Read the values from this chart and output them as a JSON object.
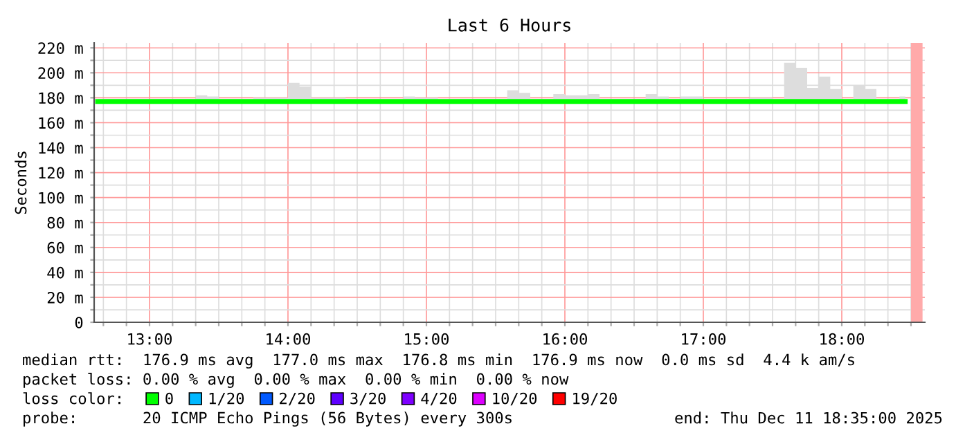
{
  "chart_data": {
    "type": "line",
    "title": "Last 6 Hours",
    "ylabel": "Seconds",
    "legend_title": "loss color:",
    "legend": "bottom",
    "grid": true,
    "xlim": [
      12.6,
      18.6
    ],
    "ylim": [
      0,
      224
    ],
    "xticks": [
      {
        "value": 12.6667,
        "label": null
      },
      {
        "value": 12.8333,
        "label": null
      },
      {
        "value": 13,
        "label": "13:00"
      },
      {
        "value": 13.1667,
        "label": null
      },
      {
        "value": 13.3333,
        "label": null
      },
      {
        "value": 13.5,
        "label": null
      },
      {
        "value": 13.6667,
        "label": null
      },
      {
        "value": 13.8333,
        "label": null
      },
      {
        "value": 14,
        "label": "14:00"
      },
      {
        "value": 14.1667,
        "label": null
      },
      {
        "value": 14.3333,
        "label": null
      },
      {
        "value": 14.5,
        "label": null
      },
      {
        "value": 14.6667,
        "label": null
      },
      {
        "value": 14.8333,
        "label": null
      },
      {
        "value": 15,
        "label": "15:00"
      },
      {
        "value": 15.1667,
        "label": null
      },
      {
        "value": 15.3333,
        "label": null
      },
      {
        "value": 15.5,
        "label": null
      },
      {
        "value": 15.6667,
        "label": null
      },
      {
        "value": 15.8333,
        "label": null
      },
      {
        "value": 16,
        "label": "16:00"
      },
      {
        "value": 16.1667,
        "label": null
      },
      {
        "value": 16.3333,
        "label": null
      },
      {
        "value": 16.5,
        "label": null
      },
      {
        "value": 16.6667,
        "label": null
      },
      {
        "value": 16.8333,
        "label": null
      },
      {
        "value": 17,
        "label": "17:00"
      },
      {
        "value": 17.1667,
        "label": null
      },
      {
        "value": 17.3333,
        "label": null
      },
      {
        "value": 17.5,
        "label": null
      },
      {
        "value": 17.6667,
        "label": null
      },
      {
        "value": 17.8333,
        "label": null
      },
      {
        "value": 18,
        "label": "18:00"
      },
      {
        "value": 18.1667,
        "label": null
      },
      {
        "value": 18.3333,
        "label": null
      },
      {
        "value": 18.5,
        "label": null
      }
    ],
    "yticks": [
      0,
      {
        "value": 10,
        "label": null
      },
      {
        "value": 20,
        "label": "20 m"
      },
      {
        "value": 30,
        "label": null
      },
      {
        "value": 40,
        "label": "40 m"
      },
      {
        "value": 50,
        "label": null
      },
      {
        "value": 60,
        "label": "60 m"
      },
      {
        "value": 70,
        "label": null
      },
      {
        "value": 80,
        "label": "80 m"
      },
      {
        "value": 90,
        "label": null
      },
      {
        "value": 100,
        "label": "100 m"
      },
      {
        "value": 110,
        "label": null
      },
      {
        "value": 120,
        "label": "120 m"
      },
      {
        "value": 130,
        "label": null
      },
      {
        "value": 140,
        "label": "140 m"
      },
      {
        "value": 150,
        "label": null
      },
      {
        "value": 160,
        "label": "160 m"
      },
      {
        "value": 170,
        "label": null
      },
      {
        "value": 180,
        "label": "180 m"
      },
      {
        "value": 190,
        "label": null
      },
      {
        "value": 200,
        "label": "200 m"
      },
      {
        "value": 210,
        "label": null
      },
      {
        "value": 220,
        "label": "220 m"
      }
    ],
    "bands": [
      {
        "axis": "x",
        "from": 18.5,
        "to": 18.5833,
        "color": "#ffaaaa"
      }
    ],
    "series": [
      {
        "name": "0",
        "color": "#00ff00",
        "x": [
          12.625,
          12.7083,
          12.7917,
          12.875,
          12.9583,
          13.0417,
          13.125,
          13.2083,
          13.2917,
          13.375,
          13.4583,
          13.5417,
          13.625,
          13.7083,
          13.7917,
          13.875,
          13.9583,
          14.0417,
          14.125,
          14.2083,
          14.2917,
          14.375,
          14.4583,
          14.5417,
          14.625,
          14.7083,
          14.7917,
          14.875,
          14.9583,
          15.0417,
          15.125,
          15.2083,
          15.2917,
          15.375,
          15.4583,
          15.5417,
          15.625,
          15.7083,
          15.7917,
          15.875,
          15.9583,
          16.0417,
          16.125,
          16.2083,
          16.2917,
          16.375,
          16.4583,
          16.5417,
          16.625,
          16.7083,
          16.7917,
          16.875,
          16.9583,
          17.0417,
          17.125,
          17.2083,
          17.2917,
          17.375,
          17.4583,
          17.5417,
          17.625,
          17.7083,
          17.7917,
          17.875,
          17.9583,
          18.0417,
          18.125,
          18.2083,
          18.2917,
          18.375,
          18.4583
        ],
        "values": [
          177,
          177,
          177,
          177,
          177,
          177,
          177,
          177,
          177,
          177,
          177,
          177,
          177,
          177,
          177,
          177,
          177,
          177,
          177,
          177,
          177,
          177,
          177,
          177,
          177,
          177,
          177,
          177,
          177,
          177,
          177,
          177,
          177,
          177,
          177,
          177,
          177,
          177,
          177,
          177,
          177,
          177,
          177,
          177,
          177,
          177,
          177,
          177,
          177,
          177,
          177,
          177,
          177,
          177,
          177,
          177,
          177,
          177,
          177,
          177,
          177,
          177,
          177,
          177,
          177,
          177,
          177,
          177,
          177,
          177,
          177
        ],
        "lower": [
          176,
          176,
          176,
          176,
          176,
          176,
          176,
          176,
          176,
          176,
          176,
          176,
          176,
          176,
          176,
          176,
          176,
          176,
          176,
          176,
          176,
          176,
          176,
          176,
          176,
          176,
          176,
          176,
          176,
          176,
          176,
          176,
          176,
          176,
          176,
          176,
          176,
          176,
          176,
          176,
          176,
          176,
          176,
          176,
          176,
          176,
          176,
          176,
          176,
          176,
          176,
          176,
          176,
          176,
          176,
          176,
          176,
          176,
          176,
          176,
          176,
          176,
          176,
          176,
          176,
          176,
          176,
          176,
          176,
          176,
          176
        ],
        "upper": [
          179,
          179,
          179,
          179,
          179,
          179,
          179,
          179,
          179,
          182,
          181,
          179,
          179,
          179,
          180,
          180,
          180,
          192,
          189,
          180,
          180,
          180,
          179,
          179,
          179,
          179,
          179,
          181,
          180,
          180,
          179,
          179,
          179,
          179,
          179,
          179,
          186,
          184,
          179,
          179,
          183,
          182,
          182,
          183,
          179,
          179,
          179,
          179,
          183,
          181,
          179,
          181,
          181,
          179,
          179,
          179,
          179,
          180,
          180,
          179,
          208,
          204,
          188,
          197,
          187,
          179,
          190,
          187,
          179,
          179,
          181
        ]
      },
      {
        "name": "1/20",
        "color": "#00b8ff"
      },
      {
        "name": "2/20",
        "color": "#0059ff"
      },
      {
        "name": "3/20",
        "color": "#5e00ff"
      },
      {
        "name": "4/20",
        "color": "#7e00ff"
      },
      {
        "name": "10/20",
        "color": "#dd00ff"
      },
      {
        "name": "19/20",
        "color": "#ff0000"
      }
    ],
    "annotations": [
      "median rtt:  176.9 ms avg  177.0 ms max  176.8 ms min  176.9 ms now  0.0 ms sd  4.4 k am/s",
      "packet loss: 0.00 % avg  0.00 % max  0.00 % min  0.00 % now",
      "probe:       20 ICMP Echo Pings (56 Bytes) every 300s",
      "end: Thu Dec 11 18:35:00 2025"
    ]
  }
}
